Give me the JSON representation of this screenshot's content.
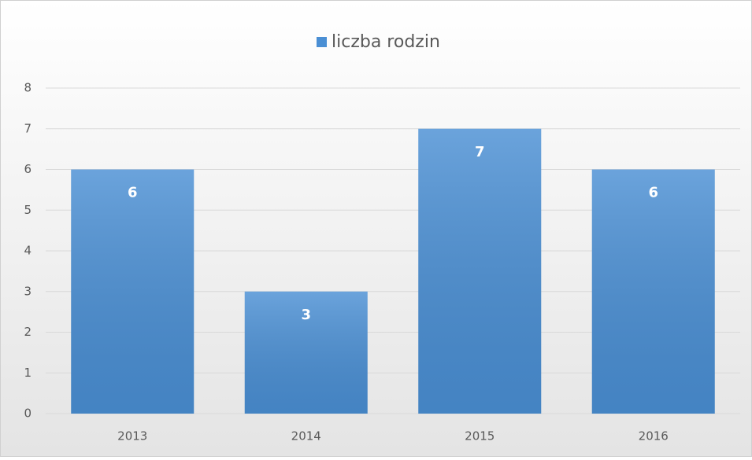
{
  "chart_data": {
    "type": "bar",
    "categories": [
      "2013",
      "2014",
      "2015",
      "2016"
    ],
    "series": [
      {
        "name": "liczba rodzin",
        "color": "#4a8fd4",
        "values": [
          6,
          3,
          7,
          6
        ]
      }
    ],
    "ylim": [
      0,
      8
    ],
    "yticks": [
      0,
      1,
      2,
      3,
      4,
      5,
      6,
      7,
      8
    ],
    "grid": true,
    "legend": "top",
    "data_labels": true
  }
}
